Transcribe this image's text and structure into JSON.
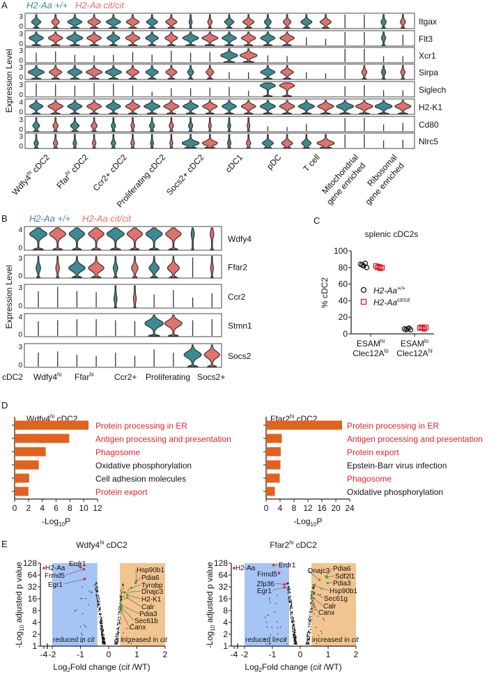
{
  "panel_labels": {
    "a": "A",
    "b": "B",
    "c": "C",
    "d": "D",
    "e": "E"
  },
  "legend": {
    "wt": "H2-Aa +/+",
    "cit": "H2-Aa cit/cit"
  },
  "colors": {
    "wt": "#3b8b92",
    "cit": "#e2716b",
    "outline": "#333333",
    "bar": "#e0621e",
    "red_term": "#e8202a",
    "volcano_blue": "#a6c4f4",
    "volcano_orange": "#f2c48f",
    "red_point": "#e8202a",
    "green_point": "#5aa02c"
  },
  "panel_a": {
    "ylabel": "Expression Level",
    "categories": [
      {
        "main": "Wdfy4",
        "sup": "hi",
        "rest": " cDC2"
      },
      {
        "main": "Ffar",
        "sup": "hi",
        "rest": " cDC2"
      },
      {
        "main": "Ccr2+ cDC2"
      },
      {
        "main": "Proliferating cDC2"
      },
      {
        "main": "Socs2+ cDC2"
      },
      {
        "main": "cDC1"
      },
      {
        "main": "pDC"
      },
      {
        "main": "T cell"
      },
      {
        "main": "Mitochondrial",
        "line2": "gene enriched"
      },
      {
        "main": "Ribosomal",
        "line2": "gene enriched"
      }
    ],
    "genes": [
      {
        "name": "Itgax",
        "ymax": "3",
        "peak": 0.45,
        "widths": [
          0.5,
          0.4,
          0.8,
          0.7,
          0.8,
          0.7,
          0.6,
          0.6,
          0.12,
          0.2,
          0.5,
          0.6,
          0.35,
          0.4,
          0.6,
          0.6,
          -1,
          -1,
          0.25,
          0.25
        ]
      },
      {
        "name": "Flt3",
        "ymax": "3",
        "peak": 0.55,
        "widths": [
          0.8,
          0.8,
          0.9,
          0.8,
          0.7,
          0.8,
          0.7,
          0.7,
          0.9,
          0.9,
          0.8,
          0.8,
          0.8,
          0.8,
          -0.6,
          -0.5,
          -1,
          -1,
          0.2,
          -0.8
        ]
      },
      {
        "name": "Xcr1",
        "ymax": "3",
        "peak": 0.5,
        "widths": [
          -0.7,
          -0.8,
          -0.55,
          -0.5,
          -0.55,
          -0.75,
          -0.55,
          -0.85,
          -0.7,
          -0.75,
          1,
          1,
          -0.5,
          -0.45,
          0,
          0,
          -1,
          -1,
          -0.45,
          -0.45
        ]
      },
      {
        "name": "Sirpa",
        "ymax": "3",
        "peak": 0.5,
        "widths": [
          0.9,
          0.7,
          0.8,
          0.9,
          0.9,
          0.7,
          0.7,
          0.6,
          0.3,
          0.4,
          -0.5,
          -0.5,
          0.8,
          0.7,
          -0.5,
          -0.4,
          -1,
          0.25,
          0.2,
          0.2
        ]
      },
      {
        "name": "Siglech",
        "ymax": "3",
        "peak": 0.8,
        "widths": [
          -0.95,
          -0.9,
          -0.8,
          -1,
          -0.95,
          -0.8,
          -0.35,
          -0.6,
          -0.6,
          -0.65,
          -0.7,
          -0.4,
          0.85,
          0.85,
          0,
          0,
          -0.75,
          -0.85,
          -0.45,
          -0.45
        ]
      },
      {
        "name": "H2-K1",
        "ymax": "4",
        "peak": 0.55,
        "widths": [
          0.75,
          0.85,
          0.8,
          0.8,
          0.8,
          0.8,
          0.9,
          0.85,
          0.85,
          0.8,
          0.8,
          0.8,
          0.85,
          0.85,
          0.9,
          0.9,
          1,
          1,
          1,
          0.9
        ]
      },
      {
        "name": "Cd80",
        "ymax": "3",
        "peak": 0.4,
        "widths": [
          0.35,
          0.25,
          0.45,
          0.3,
          0.2,
          0.15,
          0.25,
          0.2,
          0.2,
          0.1,
          0.12,
          0.1,
          -0.35,
          -0.3,
          -0.55,
          0,
          -1,
          -1,
          -0.5,
          -0.6
        ]
      },
      {
        "name": "Nlrc5",
        "ymax": "3",
        "peak": 0.35,
        "widths": [
          0.2,
          0.2,
          0.15,
          0.15,
          0.2,
          0.15,
          0.12,
          0.12,
          1,
          0.85,
          0.15,
          0.2,
          0.6,
          0.6,
          0.5,
          1,
          -1,
          -1,
          -0.55,
          -0.6
        ]
      }
    ]
  },
  "panel_b": {
    "ylabel": "Expression Level",
    "prefix": "cDC2",
    "categories": [
      {
        "main": "Wdfy4",
        "sup": "hi"
      },
      {
        "main": "Ffar",
        "sup": "hi"
      },
      {
        "main": "Ccr2+"
      },
      {
        "main": "Proliferating"
      },
      {
        "main": "Socs2+"
      }
    ],
    "genes": [
      {
        "name": "Wdfy4",
        "ymax": "4",
        "peak": 0.72,
        "widths": [
          0.9,
          0.85,
          0.8,
          0.8,
          0.9,
          0.8,
          0.85,
          0.8,
          0.12,
          0.15
        ]
      },
      {
        "name": "Ffar2",
        "ymax": "3",
        "peak": 0.45,
        "widths": [
          0.2,
          0.15,
          0.85,
          0.8,
          0.2,
          0.3,
          0.5,
          0.6,
          -0.95,
          0.1
        ]
      },
      {
        "name": "Ccr2",
        "ymax": "3",
        "peak": 0.4,
        "widths": [
          -0.75,
          -0.95,
          -0.75,
          -0.7,
          0.12,
          0.1,
          -0.6,
          -0.8,
          -0.45,
          -0.65
        ]
      },
      {
        "name": "Stmn1",
        "ymax": "4",
        "peak": 0.6,
        "widths": [
          -0.7,
          -0.75,
          -0.8,
          -0.8,
          -0.75,
          -0.7,
          1,
          0.9,
          -0.75,
          -0.8
        ]
      },
      {
        "name": "Socs2",
        "ymax": "3",
        "peak": 0.55,
        "widths": [
          -0.65,
          -0.7,
          -0.55,
          -0.5,
          -0.65,
          -0.5,
          -0.8,
          -0.65,
          0.9,
          0.8
        ]
      }
    ]
  },
  "chart_data": [
    {
      "id": "panel-c",
      "type": "scatter",
      "title": "splenic cDC2s",
      "ylabel": "% cDC2",
      "ylim": [
        0,
        100
      ],
      "yticks": [
        "0",
        "20",
        "40",
        "60",
        "80",
        "100"
      ],
      "categories": [
        {
          "line1": "ESAM",
          "sup1": "hi",
          "line2": "Clec12A",
          "sup2": "lo"
        },
        {
          "line1": "ESAM",
          "sup1": "lo",
          "line2": "Clec12A",
          "sup2": "hi"
        }
      ],
      "legend": [
        {
          "main": "H2-Aa",
          "sup": "+/+"
        },
        {
          "main": "H2-Aa",
          "sup": "cit/cit"
        }
      ],
      "series": [
        {
          "name": "H2-Aa+/+",
          "values": [
            [
              84,
              83,
              82,
              85,
              80
            ],
            [
              6,
              5,
              6,
              7,
              5
            ]
          ]
        },
        {
          "name": "H2-Aacit/cit",
          "values": [
            [
              82,
              80,
              81,
              79,
              80
            ],
            [
              7,
              8,
              7,
              6,
              8
            ]
          ]
        }
      ]
    },
    {
      "id": "panel-d-left",
      "type": "bar",
      "title_main": "Wdfy4",
      "title_sup": "hi",
      "title_rest": " cDC2",
      "xlabel_main": "-Log",
      "xlabel_sub": "10",
      "xlabel_rest": "P",
      "xlim": [
        0,
        12
      ],
      "xticks": [
        "0",
        "2",
        "4",
        "6",
        "8",
        "10",
        "12"
      ],
      "categories": [
        "Protein processing in ER",
        "Antigen processing and presentation",
        "Phagosome",
        "Oxidative phosphorylation",
        "Cell adhesion molecules",
        "Protein export"
      ],
      "highlight": [
        true,
        true,
        true,
        false,
        false,
        true
      ],
      "values": [
        10.7,
        7.9,
        4.5,
        3.5,
        2.1,
        2.0
      ]
    },
    {
      "id": "panel-d-right",
      "type": "bar",
      "title_main": "Ffar2",
      "title_sup": "hi",
      "title_rest": " cDC2",
      "xlabel_main": "-Log",
      "xlabel_sub": "10",
      "xlabel_rest": "P",
      "xlim": [
        0,
        24
      ],
      "xticks": [
        "0",
        "4",
        "8",
        "12",
        "16",
        "20",
        "24"
      ],
      "categories": [
        "Protein processing in ER",
        "Antigen processing and presentation",
        "Protein export",
        "Epstein-Barr virus infection",
        "Phagosome",
        "Oxidative phosphorylation"
      ],
      "highlight": [
        true,
        true,
        true,
        false,
        true,
        false
      ],
      "values": [
        21.8,
        4.5,
        4.2,
        4.1,
        3.9,
        2.5
      ]
    },
    {
      "id": "panel-e-left",
      "type": "scatter",
      "title_main": "Wdfy4",
      "title_sup": "hi",
      "title_rest": " cDC2",
      "ylabel_main": "-Log",
      "ylabel_sub": "10",
      "ylabel_rest": " adjusted p value",
      "xlabel_main": "Log",
      "xlabel_sub": "2",
      "xlabel_rest": "Fold change (",
      "xlabel_it": "cit",
      "xlabel_end": " /WT)",
      "yticks": [
        "1",
        "2",
        "4",
        "8",
        "16",
        "32",
        "64",
        "128"
      ],
      "xticks": [
        "-4",
        "-2",
        "-1",
        "0",
        "1",
        "2"
      ],
      "region_reduced": {
        "text": "reduced in ",
        "it": "cit"
      },
      "region_increased": {
        "text": "increased in ",
        "it": "cit"
      },
      "labeled_points": [
        {
          "gene": "H2-Aa",
          "x": -4.2,
          "y": 96,
          "group": "red"
        },
        {
          "gene": "Erdr1",
          "x": -1.0,
          "y": 101,
          "group": "red"
        },
        {
          "gene": "Frmd5",
          "x": -0.88,
          "y": 90,
          "group": "red"
        },
        {
          "gene": "Egr1",
          "x": -0.85,
          "y": 51,
          "group": "red"
        },
        {
          "gene": "Hsp90b1",
          "x": 0.98,
          "y": 45,
          "group": "green"
        },
        {
          "gene": "Pdia6",
          "x": 0.95,
          "y": 40,
          "group": "green"
        },
        {
          "gene": "Tyrobp",
          "x": 0.8,
          "y": 30,
          "group": "green"
        },
        {
          "gene": "Dnajc3",
          "x": 0.56,
          "y": 23,
          "group": "green"
        },
        {
          "gene": "H2-K1",
          "x": 0.66,
          "y": 20,
          "group": "green"
        },
        {
          "gene": "Calr",
          "x": 0.66,
          "y": 17,
          "group": "green"
        },
        {
          "gene": "Pdia3",
          "x": 0.44,
          "y": 11,
          "group": "green"
        },
        {
          "gene": "Sec61b",
          "x": 0.45,
          "y": 10,
          "group": "green"
        },
        {
          "gene": "Canx",
          "x": 0.45,
          "y": 8,
          "group": "green"
        }
      ]
    },
    {
      "id": "panel-e-right",
      "type": "scatter",
      "title_main": "Ffar2",
      "title_sup": "hi",
      "title_rest": " cDC2",
      "ylabel_main": "-Log",
      "ylabel_sub": "10",
      "ylabel_rest": " adjusted p value",
      "xlabel_main": "Log",
      "xlabel_sub": "2",
      "xlabel_rest": "Fold change (",
      "xlabel_it": "cit",
      "xlabel_end": " /WT)",
      "yticks": [
        "1",
        "2",
        "4",
        "8",
        "16",
        "32",
        "64",
        "128"
      ],
      "xticks": [
        "-4",
        "-2",
        "-1",
        "0",
        "1",
        "2"
      ],
      "region_reduced": {
        "text": "reduced in ",
        "it": "cit"
      },
      "region_increased": {
        "text": "increased in ",
        "it": "cit"
      },
      "labeled_points": [
        {
          "gene": "H2-Aa",
          "x": -4.2,
          "y": 96,
          "group": "red"
        },
        {
          "gene": "Erdr1",
          "x": -0.96,
          "y": 114,
          "group": "red"
        },
        {
          "gene": "Frmd5",
          "x": -0.76,
          "y": 72,
          "group": "red"
        },
        {
          "gene": "Zfp36",
          "x": -0.57,
          "y": 37,
          "group": "red"
        },
        {
          "gene": "Egr1",
          "x": -0.57,
          "y": 31,
          "group": "red"
        },
        {
          "gene": "Dnajc3",
          "x": 0.69,
          "y": 48,
          "group": "green"
        },
        {
          "gene": "Pdia6",
          "x": 0.93,
          "y": 59,
          "group": "green"
        },
        {
          "gene": "Sdf2l1",
          "x": 0.96,
          "y": 56,
          "group": "green"
        },
        {
          "gene": "Pdia3",
          "x": 0.98,
          "y": 40,
          "group": "green"
        },
        {
          "gene": "Hsp90b1",
          "x": 0.47,
          "y": 35,
          "group": "green"
        },
        {
          "gene": "Sec61g",
          "x": 0.42,
          "y": 24,
          "group": "green"
        },
        {
          "gene": "Calr",
          "x": 0.49,
          "y": 16.5,
          "group": "green"
        },
        {
          "gene": "Canx",
          "x": 0.4,
          "y": 17,
          "group": "green"
        }
      ]
    }
  ]
}
